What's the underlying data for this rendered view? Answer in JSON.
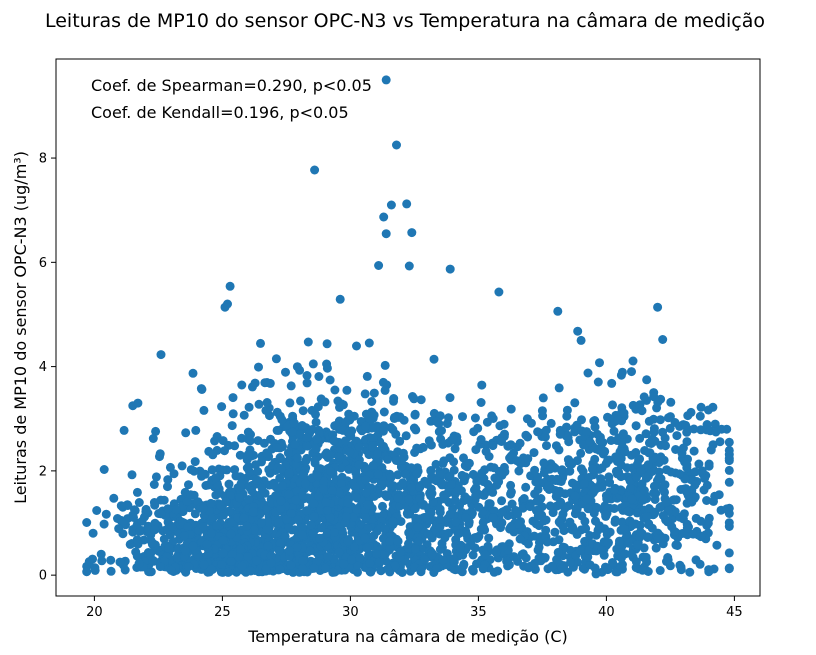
{
  "chart_data": {
    "type": "scatter",
    "title": "Leituras de MP10 do sensor OPC-N3 vs Temperatura na câmara de medição",
    "xlabel": "Temperatura na câmara de medição (C)",
    "ylabel": "Leituras de MP10 do sensor OPC-N3 (ug/m³)",
    "xlim": [
      18.5,
      46.0
    ],
    "ylim": [
      -0.4,
      9.9
    ],
    "xticks": [
      20,
      25,
      30,
      35,
      40,
      45
    ],
    "yticks": [
      0,
      2,
      4,
      6,
      8
    ],
    "grid": false,
    "color": "#1f77b4",
    "annotations": [
      "Coef. de Spearman=0.290, p<0.05",
      "Coef. de Kendall=0.196, p<0.05"
    ],
    "distribution": [
      {
        "x_center": 28.5,
        "x_spread": 2.2,
        "y_mean": 1.4,
        "y_spread": 1.1,
        "count": 900
      },
      {
        "x_center": 26.0,
        "x_spread": 1.3,
        "y_mean": 0.7,
        "y_spread": 0.6,
        "count": 500
      },
      {
        "x_center": 31.5,
        "x_spread": 1.8,
        "y_mean": 1.3,
        "y_spread": 1.0,
        "count": 450
      },
      {
        "x_center": 36.0,
        "x_spread": 2.5,
        "y_mean": 1.2,
        "y_spread": 1.0,
        "count": 450
      },
      {
        "x_center": 40.5,
        "x_spread": 1.6,
        "y_mean": 1.5,
        "y_spread": 1.0,
        "count": 400
      },
      {
        "x_center": 23.0,
        "x_spread": 1.3,
        "y_mean": 0.7,
        "y_spread": 0.6,
        "count": 250
      },
      {
        "x_center": 43.0,
        "x_spread": 1.0,
        "y_mean": 1.8,
        "y_spread": 0.8,
        "count": 130
      }
    ],
    "points": [
      {
        "x": 31.4,
        "y": 9.5
      },
      {
        "x": 31.8,
        "y": 8.25
      },
      {
        "x": 28.6,
        "y": 7.77
      },
      {
        "x": 31.6,
        "y": 7.1
      },
      {
        "x": 32.2,
        "y": 7.12
      },
      {
        "x": 31.3,
        "y": 6.87
      },
      {
        "x": 31.4,
        "y": 6.55
      },
      {
        "x": 32.4,
        "y": 6.57
      },
      {
        "x": 31.1,
        "y": 5.94
      },
      {
        "x": 32.3,
        "y": 5.93
      },
      {
        "x": 33.9,
        "y": 5.87
      },
      {
        "x": 25.3,
        "y": 5.54
      },
      {
        "x": 25.2,
        "y": 5.2
      },
      {
        "x": 25.1,
        "y": 5.14
      },
      {
        "x": 29.6,
        "y": 5.29
      },
      {
        "x": 35.8,
        "y": 5.43
      },
      {
        "x": 42.0,
        "y": 5.14
      },
      {
        "x": 38.1,
        "y": 5.06
      },
      {
        "x": 22.6,
        "y": 4.23
      },
      {
        "x": 21.0,
        "y": 0.25
      },
      {
        "x": 19.8,
        "y": 0.26
      },
      {
        "x": 42.5,
        "y": 0.18
      },
      {
        "x": 42.1,
        "y": 0.09
      },
      {
        "x": 44.7,
        "y": 1.27
      },
      {
        "x": 44.7,
        "y": 2.8
      },
      {
        "x": 44.5,
        "y": 2.8
      },
      {
        "x": 44.8,
        "y": 1.78
      },
      {
        "x": 21.5,
        "y": 3.25
      },
      {
        "x": 21.7,
        "y": 3.3
      },
      {
        "x": 22.3,
        "y": 2.62
      },
      {
        "x": 24.2,
        "y": 3.56
      },
      {
        "x": 42.2,
        "y": 4.52
      },
      {
        "x": 43.7,
        "y": 3.22
      }
    ]
  }
}
